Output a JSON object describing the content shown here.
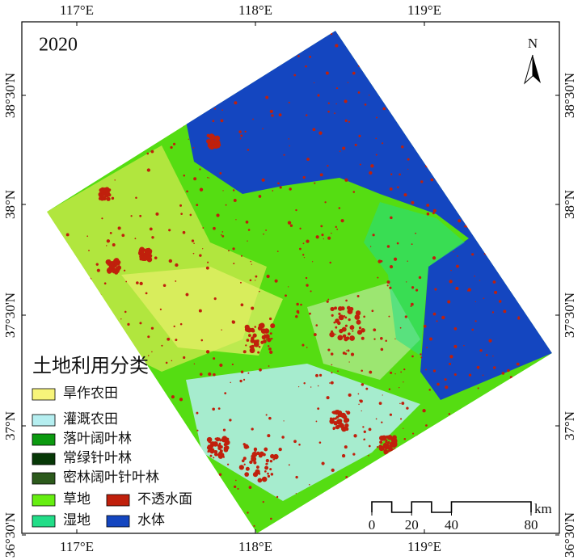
{
  "title": "2020",
  "north": "N",
  "longitude_labels": [
    "117°E",
    "118°E",
    "119°E"
  ],
  "latitude_labels": [
    "38°30'N",
    "38°N",
    "37°30'N",
    "37°N",
    "36°30'N"
  ],
  "legend": {
    "title": "土地利用分类",
    "items": [
      {
        "name": "旱作农田",
        "color": "#f7f47a"
      },
      {
        "name": "灌溉农田",
        "color": "#b5eef0"
      },
      {
        "name": "落叶阔叶林",
        "color": "#0c9a10"
      },
      {
        "name": "常绿针叶林",
        "color": "#073807"
      },
      {
        "name": "密林阔叶针叶林",
        "color": "#2c5a1c"
      },
      {
        "name": "草地",
        "color": "#66ee11"
      },
      {
        "name": "不透水面",
        "color": "#c0200c"
      },
      {
        "name": "湿地",
        "color": "#22dd88"
      },
      {
        "name": "水体",
        "color": "#1446c0"
      }
    ]
  },
  "scale_bar": {
    "ticks": [
      0,
      20,
      40,
      80
    ],
    "unit": "km"
  }
}
